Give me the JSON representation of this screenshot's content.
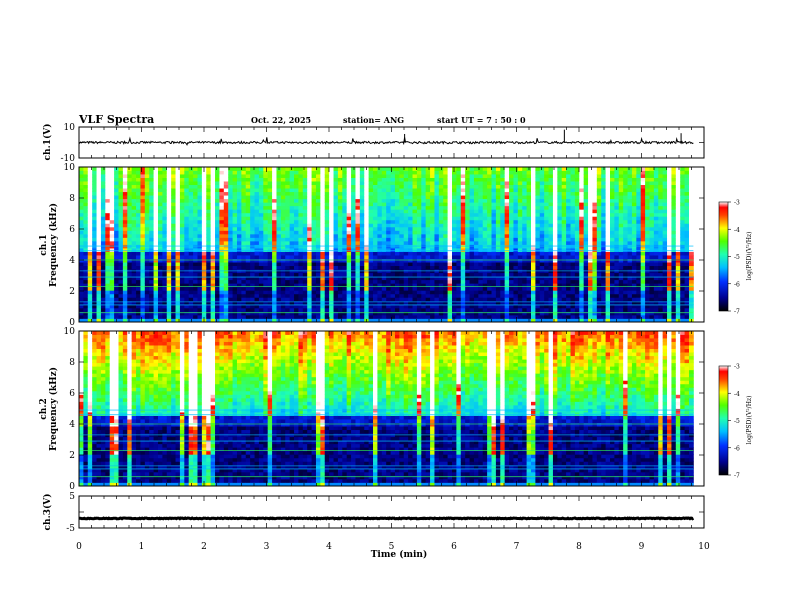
{
  "header": {
    "title": "VLF Spectra",
    "date": "Oct. 22, 2025",
    "station": "station= ANG",
    "start_ut": "start  UT =   7 : 50 : 0"
  },
  "chart_data": [
    {
      "type": "line",
      "name": "ch1-waveform",
      "ylabel": "ch.1(V)",
      "ylim": [
        -10,
        10
      ],
      "yticks": [
        "10",
        "-10"
      ],
      "xlim": [
        0,
        10
      ],
      "trace_end": 9.83,
      "baseline": 0
    },
    {
      "type": "heatmap",
      "name": "ch1-spectrogram",
      "ylabel_1": "ch.1",
      "ylabel_2": "Frequency (kHz)",
      "ylim": [
        0,
        10
      ],
      "yticks": [
        "0",
        "2",
        "4",
        "6",
        "8",
        "10"
      ],
      "xlim": [
        0,
        10
      ],
      "colorbar": {
        "label": "log(PSD)(V²/Hz)",
        "range": [
          -7,
          -3
        ],
        "ticks": [
          "-7",
          "-6",
          "-5",
          "-4",
          "-3"
        ]
      }
    },
    {
      "type": "heatmap",
      "name": "ch2-spectrogram",
      "ylabel_1": "ch.2",
      "ylabel_2": "Frequency (kHz)",
      "ylim": [
        0,
        10
      ],
      "yticks": [
        "0",
        "2",
        "4",
        "6",
        "8",
        "10"
      ],
      "xlim": [
        0,
        10
      ],
      "colorbar": {
        "label": "log(PSD)(V²/Hz)",
        "range": [
          -7,
          -3
        ],
        "ticks": [
          "-7",
          "-6",
          "-5",
          "-4",
          "-3"
        ]
      }
    },
    {
      "type": "line",
      "name": "ch3-waveform",
      "ylabel": "ch.3(V)",
      "ylim": [
        -5,
        5
      ],
      "yticks": [
        "5",
        "-5"
      ],
      "xlim": [
        0,
        10
      ],
      "trace_end": 9.83,
      "baseline": -2
    }
  ],
  "x_axis": {
    "label": "Time  (min)",
    "ticks": [
      "0",
      "1",
      "2",
      "3",
      "4",
      "5",
      "6",
      "7",
      "8",
      "9",
      "10"
    ]
  }
}
